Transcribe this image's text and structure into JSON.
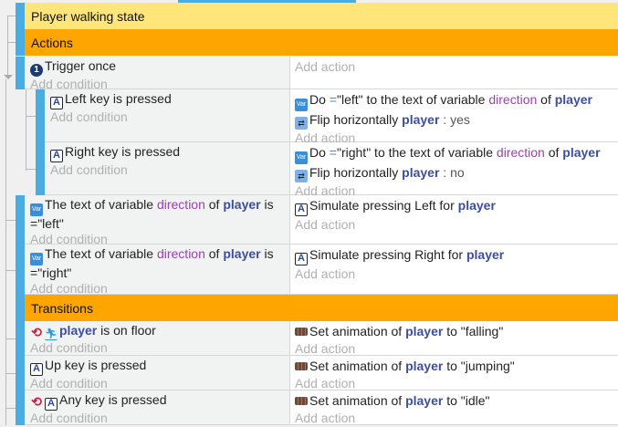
{
  "groups": {
    "state_title": "Player walking state",
    "actions_title": "Actions",
    "transitions_title": "Transitions"
  },
  "add_condition": "Add condition",
  "add_action": "Add action",
  "colors": {
    "group_state": "#ffe57a",
    "group_sub": "#ffa500",
    "event_bar": "#4aace0",
    "object": "#3c4ea0",
    "variable": "#9b41b0"
  },
  "events": [
    {
      "conditions": [
        {
          "icon": "trigger-once-icon",
          "parts": [
            {
              "k": "text",
              "t": "Trigger once"
            }
          ]
        }
      ],
      "actions": []
    },
    {
      "conditions": [
        {
          "icon": "keyboard-icon",
          "parts": [
            {
              "k": "text",
              "t": "Left"
            },
            {
              "k": "text",
              "t": " key is pressed"
            }
          ]
        }
      ],
      "actions": [
        {
          "icon": "variable-icon",
          "parts": [
            {
              "k": "text",
              "t": "Do "
            },
            {
              "k": "op",
              "t": "="
            },
            {
              "k": "text",
              "t": "\"left\" to the text of variable "
            },
            {
              "k": "var",
              "t": "direction"
            },
            {
              "k": "text",
              "t": " of "
            },
            {
              "k": "obj",
              "t": "player"
            }
          ]
        },
        {
          "icon": "flip-icon",
          "parts": [
            {
              "k": "text",
              "t": "Flip horizontally "
            },
            {
              "k": "obj",
              "t": "player"
            },
            {
              "k": "val",
              "t": " : yes"
            }
          ]
        }
      ]
    },
    {
      "conditions": [
        {
          "icon": "keyboard-icon",
          "parts": [
            {
              "k": "text",
              "t": "Right"
            },
            {
              "k": "text",
              "t": " key is pressed"
            }
          ]
        }
      ],
      "actions": [
        {
          "icon": "variable-icon",
          "parts": [
            {
              "k": "text",
              "t": "Do "
            },
            {
              "k": "op",
              "t": "="
            },
            {
              "k": "text",
              "t": "\"right\" to the text of variable "
            },
            {
              "k": "var",
              "t": "direction"
            },
            {
              "k": "text",
              "t": " of "
            },
            {
              "k": "obj",
              "t": "player"
            }
          ]
        },
        {
          "icon": "flip-icon",
          "parts": [
            {
              "k": "text",
              "t": "Flip horizontally "
            },
            {
              "k": "obj",
              "t": "player"
            },
            {
              "k": "val",
              "t": " : no"
            }
          ]
        }
      ]
    },
    {
      "conditions": [
        {
          "icon": "variable-icon",
          "parts": [
            {
              "k": "text",
              "t": "The text of variable "
            },
            {
              "k": "var",
              "t": "direction"
            },
            {
              "k": "text",
              "t": " of "
            },
            {
              "k": "obj",
              "t": "player"
            },
            {
              "k": "text",
              "t": " is ="
            },
            {
              "k": "text",
              "t": "\"left\""
            }
          ]
        }
      ],
      "actions": [
        {
          "icon": "keyboard-icon",
          "parts": [
            {
              "k": "text",
              "t": "Simulate pressing Left for "
            },
            {
              "k": "obj",
              "t": "player"
            }
          ]
        }
      ]
    },
    {
      "conditions": [
        {
          "icon": "variable-icon",
          "parts": [
            {
              "k": "text",
              "t": "The text of variable "
            },
            {
              "k": "var",
              "t": "direction"
            },
            {
              "k": "text",
              "t": " of "
            },
            {
              "k": "obj",
              "t": "player"
            },
            {
              "k": "text",
              "t": " is ="
            },
            {
              "k": "text",
              "t": "\"right\""
            }
          ]
        }
      ],
      "actions": [
        {
          "icon": "keyboard-icon",
          "parts": [
            {
              "k": "text",
              "t": "Simulate pressing Right for "
            },
            {
              "k": "obj",
              "t": "player"
            }
          ]
        }
      ]
    },
    {
      "conditions": [
        {
          "icon": "trigger-platformer-icon",
          "parts": [
            {
              "k": "obj",
              "t": "player"
            },
            {
              "k": "text",
              "t": " is on floor"
            }
          ]
        }
      ],
      "actions": [
        {
          "icon": "animation-icon",
          "parts": [
            {
              "k": "text",
              "t": "Set animation of "
            },
            {
              "k": "obj",
              "t": "player"
            },
            {
              "k": "text",
              "t": " to \"falling\""
            }
          ]
        }
      ]
    },
    {
      "conditions": [
        {
          "icon": "keyboard-icon",
          "parts": [
            {
              "k": "text",
              "t": "Up"
            },
            {
              "k": "text",
              "t": " key is pressed"
            }
          ]
        }
      ],
      "actions": [
        {
          "icon": "animation-icon",
          "parts": [
            {
              "k": "text",
              "t": "Set animation of "
            },
            {
              "k": "obj",
              "t": "player"
            },
            {
              "k": "text",
              "t": " to \"jumping\""
            }
          ]
        }
      ]
    },
    {
      "conditions": [
        {
          "icon": "trigger-keyboard-icon",
          "parts": [
            {
              "k": "text",
              "t": "Any key is pressed"
            }
          ]
        }
      ],
      "actions": [
        {
          "icon": "animation-icon",
          "parts": [
            {
              "k": "text",
              "t": "Set animation of "
            },
            {
              "k": "obj",
              "t": "player"
            },
            {
              "k": "text",
              "t": " to \"idle\""
            }
          ]
        }
      ]
    }
  ]
}
